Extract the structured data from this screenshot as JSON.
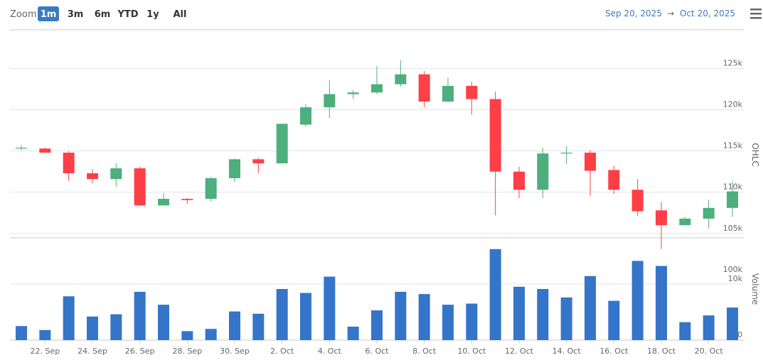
{
  "toolbar": {
    "zoom_label": "Zoom",
    "buttons": [
      "1m",
      "3m",
      "6m",
      "YTD",
      "1y",
      "All"
    ],
    "selected": 0,
    "range_start": "Sep 20, 2025",
    "range_arrow": "→",
    "range_end": "Oct 20, 2025"
  },
  "chart_data": [
    {
      "type": "candlestick",
      "y_label": "OHLC",
      "up_color": "#4caf7c",
      "down_color": "#ff3f46",
      "categories": [
        null,
        "22. Sep",
        null,
        "24. Sep",
        null,
        "26. Sep",
        null,
        "28. Sep",
        null,
        "30. Sep",
        null,
        "2. Oct",
        null,
        "4. Oct",
        null,
        "6. Oct",
        null,
        "8. Oct",
        null,
        "10. Oct",
        null,
        "12. Oct",
        null,
        "14. Oct",
        null,
        "16. Oct",
        null,
        "18. Oct",
        null,
        "20. Oct",
        null
      ],
      "open": [
        115300,
        115300,
        114800,
        112300,
        111600,
        112900,
        108400,
        109200,
        109200,
        111700,
        114000,
        113500,
        118200,
        120300,
        121900,
        122100,
        123100,
        124300,
        121000,
        122900,
        121300,
        112500,
        110300,
        114700,
        114800,
        112700,
        110300,
        107800,
        106000,
        106800,
        108100
      ],
      "high": [
        115700,
        115400,
        115000,
        112800,
        113500,
        113100,
        109900,
        109300,
        111900,
        114100,
        114200,
        118300,
        120700,
        123600,
        122400,
        125300,
        126000,
        124700,
        123900,
        123400,
        122200,
        113100,
        115400,
        115600,
        115100,
        113200,
        111600,
        108800,
        107000,
        109100,
        111300
      ],
      "low": [
        115100,
        114800,
        111400,
        111100,
        110700,
        108300,
        108400,
        108600,
        108900,
        111200,
        112300,
        113500,
        118000,
        119000,
        121300,
        121900,
        122800,
        120300,
        120900,
        119400,
        107200,
        109300,
        109300,
        113400,
        109600,
        109800,
        107100,
        103100,
        106000,
        105600,
        107000
      ],
      "close": [
        115400,
        114800,
        112300,
        111600,
        112900,
        108400,
        109200,
        109050,
        111700,
        114000,
        113500,
        118300,
        120300,
        121900,
        122100,
        123100,
        124300,
        121000,
        122900,
        121300,
        112500,
        110300,
        114700,
        114800,
        112600,
        110300,
        107700,
        106000,
        106800,
        108100,
        110100
      ],
      "ylim": [
        103000,
        129700
      ],
      "yticks": [
        {
          "value": 100000,
          "label": "100k"
        },
        {
          "value": 105000,
          "label": "105k"
        },
        {
          "value": 110000,
          "label": "110k"
        },
        {
          "value": 115000,
          "label": "115k"
        },
        {
          "value": 120000,
          "label": "120k"
        },
        {
          "value": 125000,
          "label": "125k"
        }
      ],
      "grid": true
    },
    {
      "type": "bar",
      "y_label": "Volume",
      "color": "#3575c9",
      "values": [
        2500,
        1800,
        7800,
        4200,
        4600,
        8600,
        6300,
        1600,
        2000,
        5100,
        4700,
        9100,
        8400,
        11300,
        2400,
        5300,
        8600,
        8200,
        6300,
        6500,
        16200,
        9500,
        9100,
        7600,
        11400,
        7000,
        14100,
        13200,
        3200,
        4400,
        5800
      ],
      "ylim": [
        0,
        18200
      ],
      "yticks": [
        0,
        {
          "value": 10000,
          "label": "10k"
        }
      ],
      "grid": true
    }
  ]
}
